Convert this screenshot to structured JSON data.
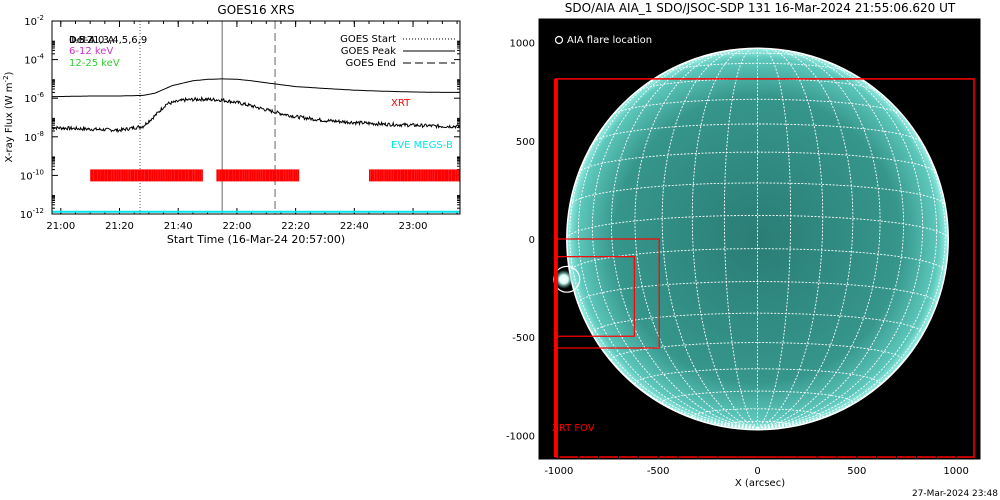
{
  "chart_data": [
    {
      "type": "line",
      "title": "GOES16 XRS",
      "xlabel": "Start Time (16-Mar-24 20:57:00)",
      "ylabel": "X-ray Flux (W m",
      "ylabel_sup": "-2",
      "ylabel_close": ")",
      "y_scale": "log",
      "xlim": [
        "20:57",
        "23:16"
      ],
      "ylim": [
        1e-12,
        0.01
      ],
      "x_ticks": [
        "21:00",
        "21:20",
        "21:40",
        "22:00",
        "22:20",
        "22:40",
        "23:00"
      ],
      "y_ticks": [
        {
          "base": "10",
          "exp": "-12"
        },
        {
          "base": "10",
          "exp": "-10"
        },
        {
          "base": "10",
          "exp": "-8"
        },
        {
          "base": "10",
          "exp": "-6"
        },
        {
          "base": "10",
          "exp": "-4"
        },
        {
          "base": "10",
          "exp": "-2"
        }
      ],
      "channels_legend": [
        {
          "label": "0.5-4.0 A",
          "color": "#000000"
        },
        {
          "label": "1-8 A",
          "color": "#000000"
        },
        {
          "label": "6-12 keV",
          "color": "#cc33cc"
        },
        {
          "label": "12-25 keV",
          "color": "#33cc33"
        }
      ],
      "overlay_label": "Det21,3,4,5,6,9",
      "markers_legend": [
        {
          "label": "GOES Start",
          "style": "dotted"
        },
        {
          "label": "GOES Peak",
          "style": "solid"
        },
        {
          "label": "GOES End",
          "style": "dashed"
        }
      ],
      "event_times": {
        "start": "21:27",
        "peak": "21:55",
        "end": "22:13"
      },
      "series": [
        {
          "name": "1-8 A",
          "x": [
            "20:57",
            "21:10",
            "21:20",
            "21:28",
            "21:32",
            "21:38",
            "21:45",
            "21:50",
            "21:55",
            "22:00",
            "22:05",
            "22:10",
            "22:15",
            "22:20",
            "22:30",
            "22:40",
            "22:50",
            "23:00",
            "23:10",
            "23:16"
          ],
          "y": [
            1.2e-06,
            1.3e-06,
            1.3e-06,
            1.4e-06,
            1.8e-06,
            4.5e-06,
            8e-06,
            9.5e-06,
            1e-05,
            9.6e-06,
            8e-06,
            6.3e-06,
            5e-06,
            4e-06,
            3.2e-06,
            2.6e-06,
            2.3e-06,
            2.1e-06,
            2e-06,
            2e-06
          ],
          "color": "#000000"
        },
        {
          "name": "0.5-4.0 A",
          "x": [
            "20:57",
            "21:10",
            "21:20",
            "21:28",
            "21:32",
            "21:36",
            "21:42",
            "21:48",
            "21:55",
            "22:00",
            "22:05",
            "22:10",
            "22:15",
            "22:20",
            "22:30",
            "22:40",
            "22:50",
            "23:00",
            "23:10",
            "23:16"
          ],
          "y": [
            3e-08,
            2.5e-08,
            2.2e-08,
            3.5e-08,
            1.2e-07,
            5e-07,
            8e-07,
            9e-07,
            8e-07,
            6e-07,
            4e-07,
            2.5e-07,
            1.6e-07,
            1.1e-07,
            7e-08,
            5.5e-08,
            4.5e-08,
            4e-08,
            3.5e-08,
            3.5e-08
          ],
          "color": "#000000"
        },
        {
          "name": "EVE MEGS-B",
          "x": [
            "20:57",
            "23:16"
          ],
          "y": [
            1.3e-12,
            1.3e-12
          ],
          "color": "#00e5ee"
        }
      ],
      "instrument_labels": [
        {
          "label": "XRT",
          "color": "#ff0000"
        },
        {
          "label": "EVE MEGS-B",
          "color": "#00e5ee"
        }
      ],
      "xrt_coverage": [
        [
          "21:10",
          "21:48"
        ],
        [
          "21:53",
          "22:21"
        ],
        [
          "22:45",
          "23:16"
        ]
      ],
      "xrt_coverage_level": 1e-10
    },
    {
      "type": "image",
      "title": "SDO/AIA AIA_1 SDO/JSOC-SDP 131 16-Mar-2024 21:55:06.620 UT",
      "xlabel": "X (arcsec)",
      "ylabel": "",
      "xlim": [
        -1100,
        1120
      ],
      "ylim": [
        -1120,
        1120
      ],
      "x_ticks": [
        "-1000",
        "-500",
        "0",
        "500",
        "1000"
      ],
      "y_ticks": [
        "-1000",
        "-500",
        "0",
        "500",
        "1000"
      ],
      "legend": "AIA flare location",
      "disk_radius_arcsec": 960,
      "flare_location_arcsec": {
        "x": -960,
        "y": -205,
        "r": 65
      },
      "xrt_fov_label": "XRT FOV",
      "xrt_fov_arcsec": [
        -1015,
        1090,
        -1110,
        815
      ],
      "boxes_arcsec": [
        {
          "x0": -1010,
          "x1": -495,
          "y0": -555,
          "y1": 0
        },
        {
          "x0": -1010,
          "x1": -620,
          "y0": -495,
          "y1": -90
        }
      ],
      "colors": {
        "disk": "#3fa59c",
        "grid": "#ffffff",
        "box": "#ff0000",
        "background": "#000000"
      }
    }
  ],
  "timestamp": "27-Mar-2024 23:48"
}
